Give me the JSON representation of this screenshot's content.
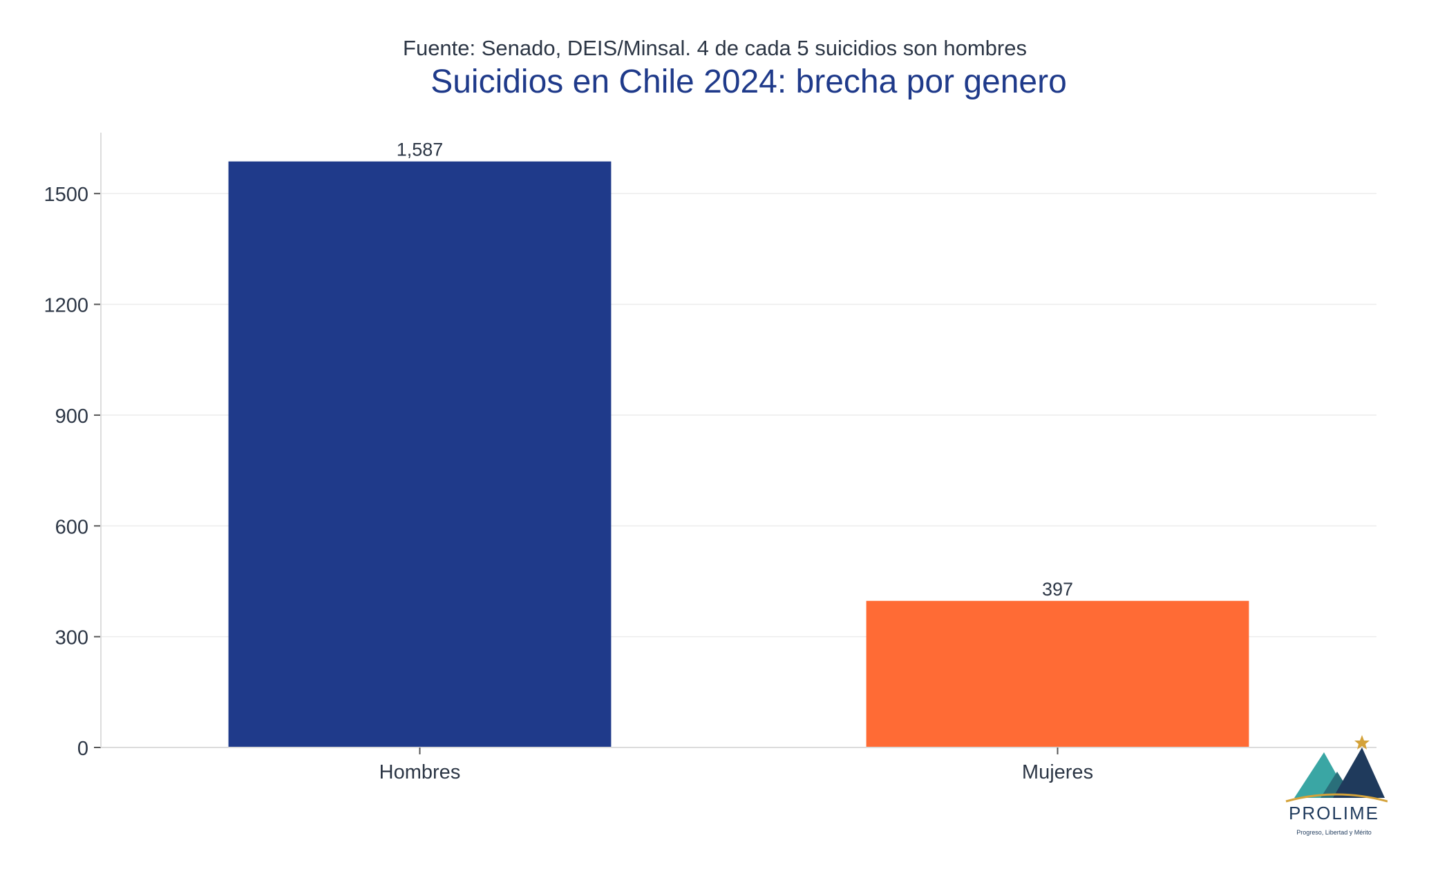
{
  "header": {
    "subtitle": "Fuente: Senado, DEIS/Minsal. 4 de cada 5 suicidios son hombres",
    "title": "Suicidios en Chile 2024: brecha por genero"
  },
  "chart_data": {
    "type": "bar",
    "title": "Suicidios en Chile 2024: brecha por genero",
    "subtitle": "Fuente: Senado, DEIS/Minsal. 4 de cada 5 suicidios son hombres",
    "categories": [
      "Hombres",
      "Mujeres"
    ],
    "values": [
      1587,
      397
    ],
    "data_labels": [
      "1,587",
      "397"
    ],
    "colors": [
      "#1f3a8a",
      "#ff6b35"
    ],
    "xlabel": "",
    "ylabel": "",
    "ylim": [
      0,
      1665
    ],
    "yticks": [
      0,
      300,
      600,
      900,
      1200,
      1500
    ],
    "ytick_labels": [
      "0",
      "300",
      "600",
      "900",
      "1200",
      "1500"
    ],
    "grid": true,
    "legend": "none"
  },
  "logo": {
    "name": "PROLIME",
    "tagline": "Progreso, Libertad y Mérito",
    "colors": {
      "teal": "#3aa6a4",
      "navy": "#1f3a5c",
      "gold": "#d4a23a"
    }
  }
}
